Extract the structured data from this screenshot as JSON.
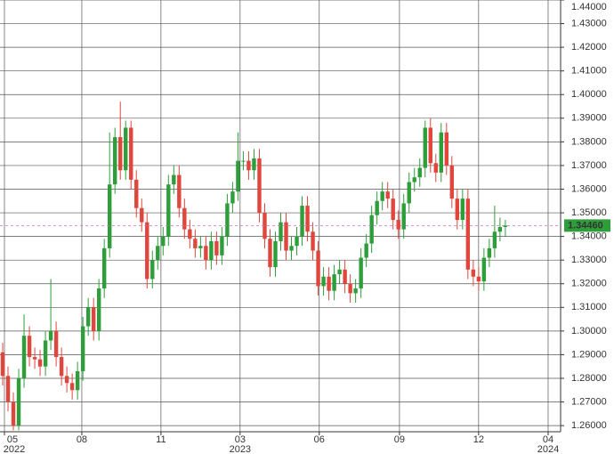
{
  "chart_data": {
    "type": "candlestick",
    "open": [
      1.291,
      1.281,
      1.27,
      1.26,
      1.28,
      1.298,
      1.289,
      1.288,
      1.285,
      1.296,
      1.3,
      1.289,
      1.281,
      1.278,
      1.275,
      1.283,
      1.302,
      1.31,
      1.3,
      1.318,
      1.335,
      1.362,
      1.382,
      1.368,
      1.386,
      1.364,
      1.352,
      1.346,
      1.322,
      1.33,
      1.336,
      1.34,
      1.362,
      1.366,
      1.352,
      1.343,
      1.339,
      1.335,
      1.336,
      1.33,
      1.338,
      1.332,
      1.34,
      1.354,
      1.359,
      1.372,
      1.372,
      1.368,
      1.373,
      1.35,
      1.339,
      1.327,
      1.338,
      1.346,
      1.334,
      1.336,
      1.34,
      1.353,
      1.342,
      1.334,
      1.319,
      1.323,
      1.317,
      1.324,
      1.326,
      1.32,
      1.316,
      1.318,
      1.331,
      1.337,
      1.349,
      1.355,
      1.359,
      1.356,
      1.347,
      1.343,
      1.354,
      1.363,
      1.365,
      1.369,
      1.386,
      1.371,
      1.367,
      1.384,
      1.37,
      1.356,
      1.347,
      1.356,
      1.326,
      1.323,
      1.321,
      1.331,
      1.335,
      1.342,
      1.344
    ],
    "high": [
      1.295,
      1.285,
      1.274,
      1.284,
      1.307,
      1.302,
      1.293,
      1.292,
      1.3,
      1.322,
      1.304,
      1.293,
      1.285,
      1.282,
      1.287,
      1.306,
      1.314,
      1.314,
      1.322,
      1.339,
      1.384,
      1.386,
      1.397,
      1.389,
      1.389,
      1.368,
      1.356,
      1.35,
      1.334,
      1.34,
      1.344,
      1.366,
      1.37,
      1.37,
      1.356,
      1.347,
      1.343,
      1.34,
      1.34,
      1.342,
      1.342,
      1.344,
      1.358,
      1.363,
      1.384,
      1.376,
      1.376,
      1.377,
      1.377,
      1.354,
      1.343,
      1.342,
      1.35,
      1.35,
      1.34,
      1.344,
      1.357,
      1.357,
      1.346,
      1.338,
      1.327,
      1.327,
      1.328,
      1.33,
      1.33,
      1.324,
      1.322,
      1.335,
      1.341,
      1.353,
      1.359,
      1.363,
      1.363,
      1.36,
      1.351,
      1.358,
      1.367,
      1.369,
      1.373,
      1.389,
      1.39,
      1.375,
      1.388,
      1.388,
      1.374,
      1.36,
      1.36,
      1.36,
      1.33,
      1.327,
      1.335,
      1.339,
      1.353,
      1.348,
      1.347
    ],
    "low": [
      1.277,
      1.266,
      1.258,
      1.258,
      1.276,
      1.285,
      1.284,
      1.281,
      1.281,
      1.292,
      1.285,
      1.277,
      1.274,
      1.271,
      1.271,
      1.279,
      1.298,
      1.296,
      1.296,
      1.314,
      1.331,
      1.358,
      1.364,
      1.364,
      1.36,
      1.348,
      1.342,
      1.318,
      1.318,
      1.326,
      1.332,
      1.336,
      1.358,
      1.348,
      1.339,
      1.335,
      1.331,
      1.331,
      1.326,
      1.326,
      1.328,
      1.328,
      1.336,
      1.35,
      1.355,
      1.368,
      1.364,
      1.364,
      1.346,
      1.335,
      1.323,
      1.323,
      1.334,
      1.33,
      1.33,
      1.332,
      1.336,
      1.338,
      1.33,
      1.315,
      1.315,
      1.313,
      1.313,
      1.32,
      1.316,
      1.312,
      1.312,
      1.314,
      1.327,
      1.333,
      1.345,
      1.351,
      1.352,
      1.343,
      1.339,
      1.339,
      1.35,
      1.359,
      1.361,
      1.365,
      1.367,
      1.363,
      1.363,
      1.366,
      1.352,
      1.343,
      1.343,
      1.322,
      1.319,
      1.317,
      1.317,
      1.327,
      1.331,
      1.338,
      1.34
    ],
    "close": [
      1.281,
      1.27,
      1.26,
      1.28,
      1.298,
      1.289,
      1.288,
      1.285,
      1.296,
      1.3,
      1.289,
      1.281,
      1.278,
      1.275,
      1.283,
      1.302,
      1.31,
      1.3,
      1.318,
      1.335,
      1.362,
      1.382,
      1.368,
      1.386,
      1.364,
      1.352,
      1.346,
      1.322,
      1.33,
      1.336,
      1.34,
      1.362,
      1.366,
      1.352,
      1.343,
      1.339,
      1.335,
      1.336,
      1.33,
      1.338,
      1.332,
      1.34,
      1.354,
      1.359,
      1.372,
      1.372,
      1.368,
      1.373,
      1.35,
      1.339,
      1.327,
      1.338,
      1.346,
      1.334,
      1.336,
      1.34,
      1.353,
      1.342,
      1.334,
      1.319,
      1.323,
      1.317,
      1.324,
      1.326,
      1.32,
      1.316,
      1.318,
      1.331,
      1.337,
      1.349,
      1.355,
      1.359,
      1.356,
      1.347,
      1.343,
      1.354,
      1.363,
      1.365,
      1.369,
      1.386,
      1.371,
      1.367,
      1.384,
      1.37,
      1.356,
      1.347,
      1.356,
      1.326,
      1.323,
      1.321,
      1.331,
      1.335,
      1.342,
      1.344,
      1.3446
    ],
    "up_color": "#2e9e3a",
    "down_color": "#e0463c",
    "xlim": [
      -0.5,
      104
    ],
    "xticks": [
      {
        "value": 0.33,
        "label": "05"
      },
      {
        "value": 14.8,
        "label": "08"
      },
      {
        "value": 29.6,
        "label": "11"
      },
      {
        "value": 44.4,
        "label": "03"
      },
      {
        "value": 59.2,
        "label": "06"
      },
      {
        "value": 74.2,
        "label": "09"
      },
      {
        "value": 89.0,
        "label": "12"
      },
      {
        "value": 102.0,
        "label": "04"
      }
    ],
    "year_labels": [
      {
        "value": 0.33,
        "label": "2022"
      },
      {
        "value": 44.4,
        "label": "2023"
      },
      {
        "value": 102.0,
        "label": "2024"
      }
    ],
    "ylim": [
      1.2574,
      1.44
    ],
    "yticks": [
      {
        "value": 1.26,
        "label": "1.26000"
      },
      {
        "value": 1.27,
        "label": "1.27000"
      },
      {
        "value": 1.28,
        "label": "1.28000"
      },
      {
        "value": 1.29,
        "label": "1.29000"
      },
      {
        "value": 1.3,
        "label": "1.30000"
      },
      {
        "value": 1.31,
        "label": "1.31000"
      },
      {
        "value": 1.32,
        "label": "1.32000"
      },
      {
        "value": 1.33,
        "label": "1.33000"
      },
      {
        "value": 1.34,
        "label": "1.34000"
      },
      {
        "value": 1.35,
        "label": "1.35000"
      },
      {
        "value": 1.36,
        "label": "1.36000"
      },
      {
        "value": 1.37,
        "label": "1.37000"
      },
      {
        "value": 1.38,
        "label": "1.38000"
      },
      {
        "value": 1.39,
        "label": "1.39000"
      },
      {
        "value": 1.4,
        "label": "1.40000"
      },
      {
        "value": 1.41,
        "label": "1.41000"
      },
      {
        "value": 1.42,
        "label": "1.42000"
      },
      {
        "value": 1.43,
        "label": "1.43000"
      },
      {
        "value": 1.44,
        "label": "1.44000"
      }
    ],
    "grid": true,
    "last_price": {
      "value": 1.3446,
      "label": "1.34460"
    },
    "last_price_color": "#2e9e3a"
  }
}
